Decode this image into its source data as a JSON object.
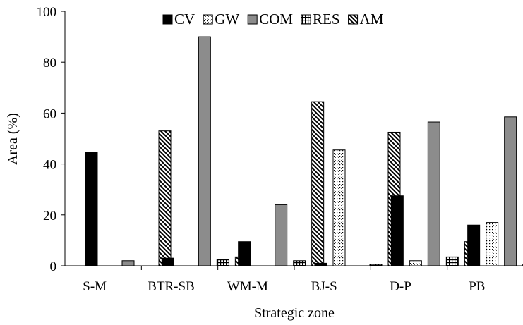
{
  "chart_data": {
    "type": "bar",
    "title": "",
    "xlabel": "Strategic zone",
    "ylabel": "Area (%)",
    "ylim": [
      0,
      100
    ],
    "yticks": [
      0,
      20,
      40,
      60,
      80,
      100
    ],
    "grid": false,
    "legend_position": "top",
    "categories": [
      "S-M",
      "BTR-SB",
      "WM-M",
      "BJ-S",
      "D-P",
      "PB"
    ],
    "series": [
      {
        "name": "CV",
        "pattern": "solid-black",
        "values": [
          44.5,
          3,
          9.5,
          1,
          27.5,
          16
        ]
      },
      {
        "name": "GW",
        "pattern": "dotted",
        "values": [
          0,
          0,
          0,
          45.5,
          2,
          17
        ]
      },
      {
        "name": "COM",
        "pattern": "solid-gray",
        "values": [
          2,
          90,
          24,
          0,
          56.5,
          58.5
        ]
      },
      {
        "name": "RES",
        "pattern": "grid",
        "values": [
          0,
          2.5,
          2,
          0.5,
          3.5,
          0.5
        ]
      },
      {
        "name": "AM",
        "pattern": "diagonal",
        "values": [
          53,
          3.5,
          64.5,
          52.5,
          9.5,
          7
        ]
      }
    ]
  }
}
